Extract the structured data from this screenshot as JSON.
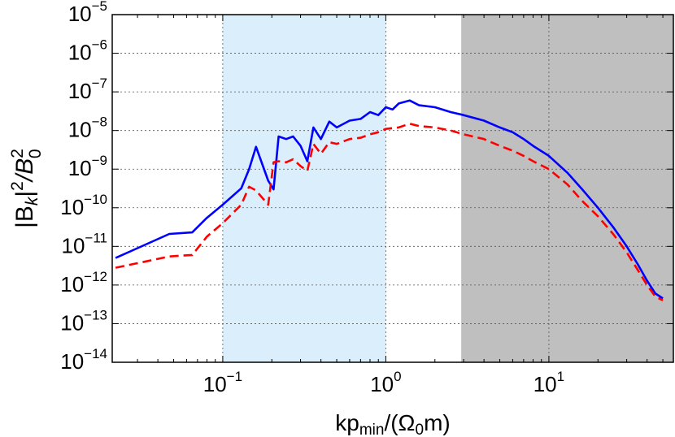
{
  "chart_data": {
    "type": "line",
    "xlabel": "kp",
    "xlabel_sub": "min",
    "xlabel_tail": "/(Ω",
    "xlabel_sub2": "0",
    "xlabel_end": "m)",
    "ylabel_left": "|B",
    "ylabel_k": "k",
    "ylabel_mid": "|",
    "ylabel_sup1": "2",
    "ylabel_slash": "/B",
    "ylabel_sup2": "2",
    "ylabel_sub2": "0",
    "x_scale": "log",
    "y_scale": "log",
    "xlim": [
      0.021,
      58
    ],
    "ylim": [
      1e-14,
      1e-05
    ],
    "grid": true,
    "x_ticks": [
      {
        "base": "10",
        "exp": "−1",
        "value": 0.1
      },
      {
        "base": "10",
        "exp": "0",
        "value": 1
      },
      {
        "base": "10",
        "exp": "1",
        "value": 10
      }
    ],
    "y_ticks": [
      {
        "base": "10",
        "exp": "−14",
        "value": 1e-14
      },
      {
        "base": "10",
        "exp": "−13",
        "value": 1e-13
      },
      {
        "base": "10",
        "exp": "−12",
        "value": 1e-12
      },
      {
        "base": "10",
        "exp": "−11",
        "value": 1e-11
      },
      {
        "base": "10",
        "exp": "−10",
        "value": 1e-10
      },
      {
        "base": "10",
        "exp": "−9",
        "value": 1e-09
      },
      {
        "base": "10",
        "exp": "−8",
        "value": 1e-08
      },
      {
        "base": "10",
        "exp": "−7",
        "value": 1e-07
      },
      {
        "base": "10",
        "exp": "−6",
        "value": 1e-06
      },
      {
        "base": "10",
        "exp": "−5",
        "value": 1e-05
      }
    ],
    "shaded_regions": [
      {
        "x": [
          0.1,
          1.0
        ],
        "color": "#dbeefb"
      },
      {
        "x": [
          2.9,
          58
        ],
        "color": "#bfbfbf"
      }
    ],
    "series": [
      {
        "color": "#0000ff",
        "style": "solid",
        "x": [
          0.022,
          0.03,
          0.047,
          0.065,
          0.08,
          0.1,
          0.13,
          0.145,
          0.16,
          0.19,
          0.205,
          0.22,
          0.245,
          0.27,
          0.3,
          0.33,
          0.36,
          0.4,
          0.45,
          0.5,
          0.6,
          0.7,
          0.8,
          0.9,
          1.0,
          1.1,
          1.2,
          1.4,
          1.6,
          2.0,
          2.5,
          3.0,
          4.0,
          5.0,
          6.0,
          7.0,
          8.0,
          10.0,
          13.0,
          16.0,
          20.0,
          25.0,
          30.0,
          35.0,
          40.0,
          45.0,
          50.0
        ],
        "y": [
          5e-12,
          9e-12,
          2.1e-11,
          2.3e-11,
          5.5e-11,
          1.2e-10,
          3.2e-10,
          1e-09,
          3.8e-09,
          5e-10,
          3e-10,
          7e-09,
          6e-09,
          7e-09,
          4e-09,
          1.6e-09,
          1.2e-08,
          6e-09,
          1.7e-08,
          1.2e-08,
          1.8e-08,
          2e-08,
          3e-08,
          2.5e-08,
          4e-08,
          3.5e-08,
          5e-08,
          6e-08,
          4.5e-08,
          4e-08,
          3e-08,
          2.5e-08,
          1.8e-08,
          1.2e-08,
          9e-09,
          6e-09,
          4e-09,
          2.2e-09,
          8e-10,
          3e-10,
          1e-10,
          3e-11,
          1e-11,
          3.5e-12,
          1.3e-12,
          6e-13,
          4.5e-13
        ]
      },
      {
        "color": "#ff0000",
        "style": "dashed",
        "x": [
          0.022,
          0.035,
          0.047,
          0.065,
          0.08,
          0.1,
          0.13,
          0.145,
          0.16,
          0.19,
          0.205,
          0.22,
          0.245,
          0.27,
          0.3,
          0.33,
          0.36,
          0.4,
          0.45,
          0.5,
          0.6,
          0.7,
          0.8,
          0.9,
          1.0,
          1.2,
          1.4,
          1.6,
          2.0,
          2.5,
          3.0,
          4.0,
          5.0,
          6.0,
          7.0,
          8.0,
          10.0,
          13.0,
          16.0,
          20.0,
          25.0,
          30.0,
          35.0,
          40.0,
          45.0,
          50.0
        ],
        "y": [
          2.8e-12,
          4.2e-12,
          5.5e-12,
          6e-12,
          1.8e-11,
          4e-11,
          1.2e-10,
          3.5e-10,
          2.8e-10,
          1.2e-10,
          1.5e-09,
          1.6e-09,
          1.5e-09,
          1.8e-09,
          1.2e-09,
          9e-10,
          4.5e-09,
          2.5e-09,
          5e-09,
          4.5e-09,
          6e-09,
          6.5e-09,
          8e-09,
          9e-09,
          1.1e-08,
          1.2e-08,
          1.5e-08,
          1.3e-08,
          1.2e-08,
          1e-08,
          8e-09,
          6e-09,
          4e-09,
          3e-09,
          2.2e-09,
          1.6e-09,
          1e-09,
          4e-10,
          1.5e-10,
          6e-11,
          2e-11,
          7e-12,
          2.5e-12,
          1e-12,
          5e-13,
          4e-13
        ]
      }
    ]
  }
}
